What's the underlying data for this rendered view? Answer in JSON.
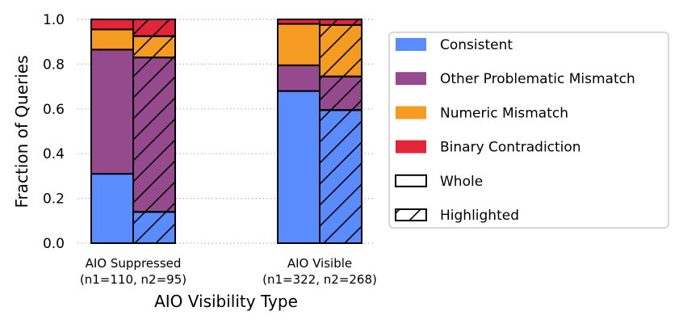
{
  "chart_data": {
    "type": "bar",
    "stacked": true,
    "xlabel": "AIO Visibility Type",
    "ylabel": "Fraction of Queries",
    "ylim": [
      0,
      1.0
    ],
    "yticks": [
      "0.0",
      "0.2",
      "0.4",
      "0.6",
      "0.8",
      "1.0"
    ],
    "grid": "horizontal dotted",
    "legend_placement": "right",
    "categories": [
      {
        "name": "AIO Suppressed",
        "sub": "(n1=110, n2=95)"
      },
      {
        "name": "AIO Visible",
        "sub": "(n1=322, n2=268)"
      }
    ],
    "variants": [
      {
        "name": "Whole",
        "hatched": false
      },
      {
        "name": "Highlighted",
        "hatched": true
      }
    ],
    "series": [
      {
        "name": "Consistent",
        "color": "#5b8cff",
        "values": {
          "Whole": [
            0.31,
            0.68
          ],
          "Highlighted": [
            0.14,
            0.595
          ]
        }
      },
      {
        "name": "Other Problematic Mismatch",
        "color": "#944a8c",
        "values": {
          "Whole": [
            0.555,
            0.115
          ],
          "Highlighted": [
            0.69,
            0.15
          ]
        }
      },
      {
        "name": "Numeric Mismatch",
        "color": "#f59b22",
        "values": {
          "Whole": [
            0.09,
            0.185
          ],
          "Highlighted": [
            0.095,
            0.23
          ]
        }
      },
      {
        "name": "Binary Contradiction",
        "color": "#e3253a",
        "values": {
          "Whole": [
            0.045,
            0.02
          ],
          "Highlighted": [
            0.075,
            0.025
          ]
        }
      }
    ]
  }
}
